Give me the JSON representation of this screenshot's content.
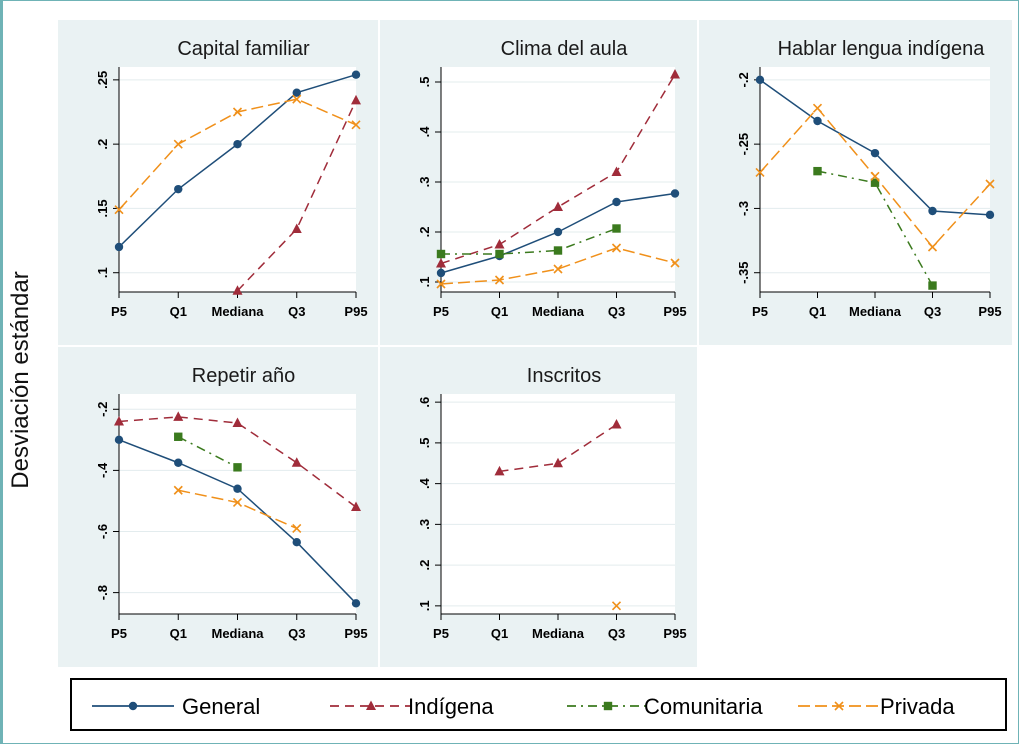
{
  "y_axis_label": "Desviación estándar",
  "colors": {
    "General": "#1f4e79",
    "Indígena": "#a02c3a",
    "Comunitaria": "#3b7a1e",
    "Privada": "#f0901a"
  },
  "chart_data": [
    {
      "type": "line",
      "title": "Capital familiar",
      "categories": [
        "P5",
        "Q1",
        "Mediana",
        "Q3",
        "P95"
      ],
      "ylim": [
        0.085,
        0.26
      ],
      "yticks": [
        0.1,
        0.15,
        0.2,
        0.25
      ],
      "yticklabels": [
        ".1",
        ".15",
        ".2",
        ".25"
      ],
      "series": [
        {
          "name": "General",
          "values": [
            0.12,
            0.165,
            0.2,
            0.24,
            0.254
          ]
        },
        {
          "name": "Indígena",
          "values": [
            null,
            null,
            0.086,
            0.134,
            0.234
          ]
        },
        {
          "name": "Privada",
          "values": [
            0.149,
            0.2,
            0.225,
            0.235,
            0.215
          ]
        }
      ]
    },
    {
      "type": "line",
      "title": "Clima del aula",
      "categories": [
        "P5",
        "Q1",
        "Mediana",
        "Q3",
        "P95"
      ],
      "ylim": [
        0.08,
        0.53
      ],
      "yticks": [
        0.1,
        0.2,
        0.3,
        0.4,
        0.5
      ],
      "yticklabels": [
        ".1",
        ".2",
        ".3",
        ".4",
        ".5"
      ],
      "series": [
        {
          "name": "General",
          "values": [
            0.118,
            0.152,
            0.2,
            0.26,
            0.277
          ]
        },
        {
          "name": "Indígena",
          "values": [
            0.137,
            0.175,
            0.25,
            0.32,
            0.515
          ]
        },
        {
          "name": "Comunitaria",
          "values": [
            0.156,
            0.156,
            0.163,
            0.207,
            null
          ]
        },
        {
          "name": "Privada",
          "values": [
            0.096,
            0.104,
            0.126,
            0.168,
            0.138
          ]
        }
      ]
    },
    {
      "type": "line",
      "title": "Hablar lengua indígena",
      "categories": [
        "P5",
        "Q1",
        "Mediana",
        "Q3",
        "P95"
      ],
      "ylim": [
        -0.365,
        -0.19
      ],
      "yticks": [
        -0.2,
        -0.25,
        -0.3,
        -0.35
      ],
      "yticklabels": [
        "-.2",
        "-.25",
        "-.3",
        "-.35"
      ],
      "series": [
        {
          "name": "General",
          "values": [
            -0.2,
            -0.232,
            -0.257,
            -0.302,
            -0.305
          ]
        },
        {
          "name": "Comunitaria",
          "values": [
            null,
            -0.271,
            -0.28,
            -0.36,
            null
          ]
        },
        {
          "name": "Privada",
          "values": [
            -0.272,
            -0.222,
            -0.275,
            -0.33,
            -0.281
          ]
        }
      ]
    },
    {
      "type": "line",
      "title": "Repetir año",
      "categories": [
        "P5",
        "Q1",
        "Mediana",
        "Q3",
        "P95"
      ],
      "ylim": [
        -0.87,
        -0.15
      ],
      "yticks": [
        -0.2,
        -0.4,
        -0.6,
        -0.8
      ],
      "yticklabels": [
        "-.2",
        "-.4",
        "-.6",
        "-.8"
      ],
      "series": [
        {
          "name": "General",
          "values": [
            -0.3,
            -0.375,
            -0.46,
            -0.635,
            -0.835
          ]
        },
        {
          "name": "Indígena",
          "values": [
            -0.24,
            -0.225,
            -0.245,
            -0.375,
            -0.52
          ]
        },
        {
          "name": "Comunitaria",
          "values": [
            null,
            -0.29,
            -0.39,
            null,
            null
          ]
        },
        {
          "name": "Privada",
          "values": [
            null,
            -0.465,
            -0.505,
            -0.59,
            null
          ]
        }
      ]
    },
    {
      "type": "line",
      "title": "Inscritos",
      "categories": [
        "P5",
        "Q1",
        "Mediana",
        "Q3",
        "P95"
      ],
      "ylim": [
        0.08,
        0.62
      ],
      "yticks": [
        0.1,
        0.2,
        0.3,
        0.4,
        0.5,
        0.6
      ],
      "yticklabels": [
        ".1",
        ".2",
        ".3",
        ".4",
        ".5",
        ".6"
      ],
      "series": [
        {
          "name": "Indígena",
          "values": [
            null,
            0.43,
            0.45,
            0.545,
            null
          ]
        },
        {
          "name": "Privada",
          "values": [
            null,
            null,
            null,
            0.1,
            null
          ]
        }
      ]
    }
  ],
  "legend": [
    {
      "label": "General",
      "marker": "circle",
      "dash": "solid"
    },
    {
      "label": "Indígena",
      "marker": "triangle",
      "dash": "dash"
    },
    {
      "label": "Comunitaria",
      "marker": "square",
      "dash": "dashdot"
    },
    {
      "label": "Privada",
      "marker": "x",
      "dash": "longdash"
    }
  ]
}
